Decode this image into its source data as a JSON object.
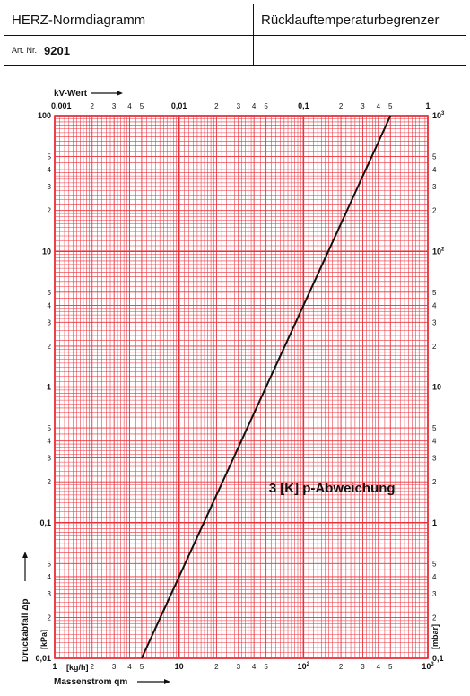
{
  "header": {
    "title": "HERZ-Normdiagramm",
    "product": "Rücklauftemperaturbegrenzer",
    "art_label": "Art. Nr.",
    "art_number": "9201",
    "empty_cell": ""
  },
  "chart_data": {
    "type": "line",
    "grid": "log-log",
    "grid_color": "#e8323c",
    "line_color": "#111111",
    "x_axis": {
      "label": "Massenstrom qm",
      "unit": "[kg/h]",
      "range": [
        1,
        1000
      ],
      "scale": "log",
      "ticks": [
        {
          "v": 1,
          "t": "1",
          "major": true
        },
        {
          "v": 2,
          "t": "2"
        },
        {
          "v": 3,
          "t": "3"
        },
        {
          "v": 4,
          "t": "4"
        },
        {
          "v": 5,
          "t": "5"
        },
        {
          "v": 10,
          "t": "10",
          "major": true
        },
        {
          "v": 20,
          "t": "2"
        },
        {
          "v": 30,
          "t": "3"
        },
        {
          "v": 40,
          "t": "4"
        },
        {
          "v": 50,
          "t": "5"
        },
        {
          "v": 100,
          "t": "10",
          "sup": "2",
          "major": true
        },
        {
          "v": 200,
          "t": "2"
        },
        {
          "v": 300,
          "t": "3"
        },
        {
          "v": 400,
          "t": "4"
        },
        {
          "v": 500,
          "t": "5"
        },
        {
          "v": 1000,
          "t": "10",
          "sup": "3",
          "major": true
        }
      ]
    },
    "kv_axis": {
      "label": "kV-Wert",
      "range": [
        0.001,
        1
      ],
      "scale": "log",
      "ticks": [
        {
          "v": 0.001,
          "t": "0,001",
          "major": true
        },
        {
          "v": 0.002,
          "t": "2"
        },
        {
          "v": 0.003,
          "t": "3"
        },
        {
          "v": 0.004,
          "t": "4"
        },
        {
          "v": 0.005,
          "t": "5"
        },
        {
          "v": 0.01,
          "t": "0,01",
          "major": true
        },
        {
          "v": 0.02,
          "t": "2"
        },
        {
          "v": 0.03,
          "t": "3"
        },
        {
          "v": 0.04,
          "t": "4"
        },
        {
          "v": 0.05,
          "t": "5"
        },
        {
          "v": 0.1,
          "t": "0,1",
          "major": true
        },
        {
          "v": 0.2,
          "t": "2"
        },
        {
          "v": 0.3,
          "t": "3"
        },
        {
          "v": 0.4,
          "t": "4"
        },
        {
          "v": 0.5,
          "t": "5"
        },
        {
          "v": 1,
          "t": "1",
          "major": true
        }
      ]
    },
    "y_axis_left": {
      "label": "Druckabfall Δp",
      "unit": "[kPa]",
      "range": [
        0.01,
        100
      ],
      "scale": "log",
      "ticks": [
        {
          "v": 0.01,
          "t": "0,01",
          "major": true
        },
        {
          "v": 0.02,
          "t": "2"
        },
        {
          "v": 0.03,
          "t": "3"
        },
        {
          "v": 0.04,
          "t": "4"
        },
        {
          "v": 0.05,
          "t": "5"
        },
        {
          "v": 0.1,
          "t": "0,1",
          "major": true
        },
        {
          "v": 0.2,
          "t": "2"
        },
        {
          "v": 0.3,
          "t": "3"
        },
        {
          "v": 0.4,
          "t": "4"
        },
        {
          "v": 0.5,
          "t": "5"
        },
        {
          "v": 1,
          "t": "1",
          "major": true
        },
        {
          "v": 2,
          "t": "2"
        },
        {
          "v": 3,
          "t": "3"
        },
        {
          "v": 4,
          "t": "4"
        },
        {
          "v": 5,
          "t": "5"
        },
        {
          "v": 10,
          "t": "10",
          "major": true
        },
        {
          "v": 20,
          "t": "2"
        },
        {
          "v": 30,
          "t": "3"
        },
        {
          "v": 40,
          "t": "4"
        },
        {
          "v": 50,
          "t": "5"
        },
        {
          "v": 100,
          "t": "100",
          "major": true
        }
      ]
    },
    "y_axis_right": {
      "unit": "[mbar]",
      "ticks": [
        {
          "v": 0.01,
          "t": "0,1",
          "major": true
        },
        {
          "v": 0.02,
          "t": "2"
        },
        {
          "v": 0.03,
          "t": "3"
        },
        {
          "v": 0.04,
          "t": "4"
        },
        {
          "v": 0.05,
          "t": "5"
        },
        {
          "v": 0.1,
          "t": "1",
          "major": true
        },
        {
          "v": 0.2,
          "t": "2"
        },
        {
          "v": 0.3,
          "t": "3"
        },
        {
          "v": 0.4,
          "t": "4"
        },
        {
          "v": 0.5,
          "t": "5"
        },
        {
          "v": 1,
          "t": "10",
          "major": true
        },
        {
          "v": 2,
          "t": "2"
        },
        {
          "v": 3,
          "t": "3"
        },
        {
          "v": 4,
          "t": "4"
        },
        {
          "v": 5,
          "t": "5"
        },
        {
          "v": 10,
          "t": "10",
          "sup": "2",
          "major": true
        },
        {
          "v": 20,
          "t": "2"
        },
        {
          "v": 30,
          "t": "3"
        },
        {
          "v": 40,
          "t": "4"
        },
        {
          "v": 50,
          "t": "5"
        },
        {
          "v": 100,
          "t": "10",
          "sup": "3",
          "major": true
        }
      ]
    },
    "series": [
      {
        "points": [
          [
            5,
            0.01
          ],
          [
            10,
            0.04
          ],
          [
            50,
            1
          ],
          [
            150,
            9
          ],
          [
            500,
            100
          ]
        ]
      }
    ],
    "annotation": "3 [K] p-Abweichung",
    "annotation_at": [
      150,
      0.18
    ]
  }
}
